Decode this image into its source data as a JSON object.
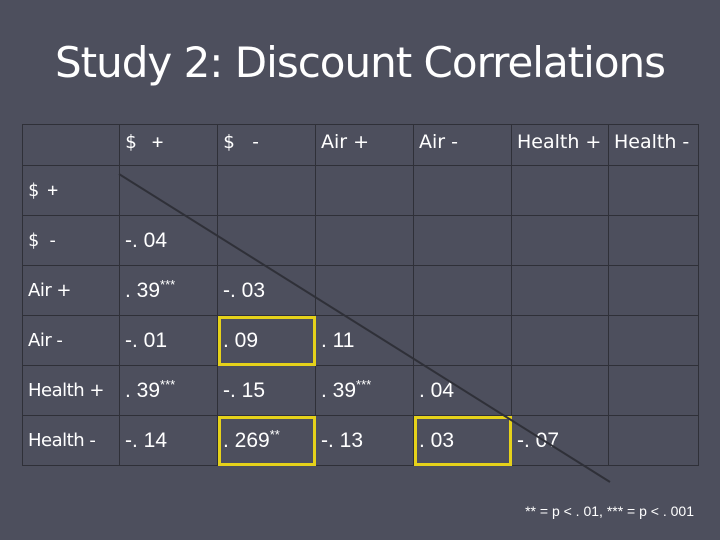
{
  "title": "Study 2: Discount Correlations",
  "columns": [
    "$ +",
    "$ -",
    "Air +",
    "Air -",
    "Health +",
    "Health -"
  ],
  "rows": [
    {
      "label": "$ +",
      "cells": [
        {
          "v": "",
          "s": ""
        },
        {
          "v": "",
          "s": ""
        },
        {
          "v": "",
          "s": ""
        },
        {
          "v": "",
          "s": ""
        },
        {
          "v": "",
          "s": ""
        },
        {
          "v": "",
          "s": ""
        }
      ]
    },
    {
      "label": "$ -",
      "cells": [
        {
          "v": "-. 04",
          "s": ""
        },
        {
          "v": "",
          "s": ""
        },
        {
          "v": "",
          "s": ""
        },
        {
          "v": "",
          "s": ""
        },
        {
          "v": "",
          "s": ""
        },
        {
          "v": "",
          "s": ""
        }
      ]
    },
    {
      "label": "Air +",
      "cells": [
        {
          "v": ". 39",
          "s": "***"
        },
        {
          "v": "-. 03",
          "s": ""
        },
        {
          "v": "",
          "s": ""
        },
        {
          "v": "",
          "s": ""
        },
        {
          "v": "",
          "s": ""
        },
        {
          "v": "",
          "s": ""
        }
      ]
    },
    {
      "label": "Air -",
      "cells": [
        {
          "v": "-. 01",
          "s": ""
        },
        {
          "v": ". 09",
          "s": ""
        },
        {
          "v": ". 11",
          "s": ""
        },
        {
          "v": "",
          "s": ""
        },
        {
          "v": "",
          "s": ""
        },
        {
          "v": "",
          "s": ""
        }
      ]
    },
    {
      "label": "Health +",
      "cells": [
        {
          "v": ". 39",
          "s": "***"
        },
        {
          "v": "-. 15",
          "s": ""
        },
        {
          "v": ". 39",
          "s": "***"
        },
        {
          "v": ". 04",
          "s": ""
        },
        {
          "v": "",
          "s": ""
        },
        {
          "v": "",
          "s": ""
        }
      ]
    },
    {
      "label": "Health -",
      "cells": [
        {
          "v": "-. 14",
          "s": ""
        },
        {
          "v": ". 269",
          "s": "**"
        },
        {
          "v": "-. 13",
          "s": ""
        },
        {
          "v": ". 03",
          "s": ""
        },
        {
          "v": "-. 07",
          "s": ""
        },
        {
          "v": "",
          "s": ""
        }
      ]
    }
  ],
  "highlight_color": "#e6d21a",
  "footnote": "** = p < . 01, *** = p < . 001"
}
